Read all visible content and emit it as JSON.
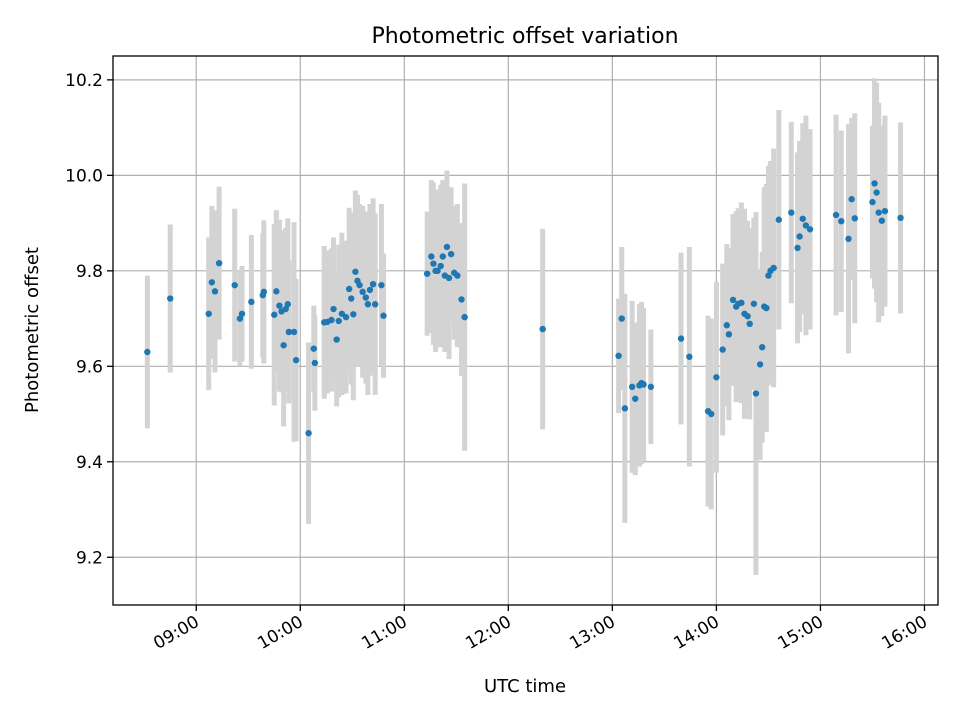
{
  "chart_data": {
    "type": "scatter",
    "title": "Photometric offset variation",
    "xlabel": "UTC time",
    "ylabel": "Photometric offset",
    "x_unit": "hours UTC",
    "xlim": [
      8.2,
      16.13
    ],
    "ylim": [
      9.1,
      10.25
    ],
    "grid": true,
    "x_ticks": [
      {
        "value": 9,
        "label": "09:00"
      },
      {
        "value": 10,
        "label": "10:00"
      },
      {
        "value": 11,
        "label": "11:00"
      },
      {
        "value": 12,
        "label": "12:00"
      },
      {
        "value": 13,
        "label": "13:00"
      },
      {
        "value": 14,
        "label": "14:00"
      },
      {
        "value": 15,
        "label": "15:00"
      },
      {
        "value": 16,
        "label": "16:00"
      }
    ],
    "y_ticks": [
      {
        "value": 9.2,
        "label": "9.2"
      },
      {
        "value": 9.4,
        "label": "9.4"
      },
      {
        "value": 9.6,
        "label": "9.6"
      },
      {
        "value": 9.8,
        "label": "9.8"
      },
      {
        "value": 10.0,
        "label": "10.0"
      },
      {
        "value": 10.2,
        "label": "10.2"
      }
    ],
    "colors": {
      "point": "#1f77b4",
      "errorbar": "#d3d3d3",
      "grid": "#b0b0b0"
    },
    "points": [
      [
        8.53,
        9.63,
        0.16
      ],
      [
        8.75,
        9.742,
        0.155
      ],
      [
        9.12,
        9.71,
        0.16
      ],
      [
        9.15,
        9.776,
        0.16
      ],
      [
        9.18,
        9.757,
        0.17
      ],
      [
        9.22,
        9.816,
        0.16
      ],
      [
        9.37,
        9.77,
        0.16
      ],
      [
        9.42,
        9.7,
        0.1
      ],
      [
        9.44,
        9.71,
        0.1
      ],
      [
        9.53,
        9.735,
        0.14
      ],
      [
        9.64,
        9.749,
        0.13
      ],
      [
        9.65,
        9.756,
        0.15
      ],
      [
        9.75,
        9.708,
        0.19
      ],
      [
        9.77,
        9.757,
        0.17
      ],
      [
        9.8,
        9.727,
        0.18
      ],
      [
        9.82,
        9.715,
        0.17
      ],
      [
        9.84,
        9.644,
        0.17
      ],
      [
        9.86,
        9.72,
        0.17
      ],
      [
        9.88,
        9.73,
        0.18
      ],
      [
        9.89,
        9.672,
        0.15
      ],
      [
        9.94,
        9.672,
        0.23
      ],
      [
        9.96,
        9.613,
        0.17
      ],
      [
        10.08,
        9.46,
        0.19
      ],
      [
        10.13,
        9.637,
        0.09
      ],
      [
        10.14,
        9.607,
        0.1
      ],
      [
        10.23,
        9.692,
        0.16
      ],
      [
        10.26,
        9.693,
        0.15
      ],
      [
        10.3,
        9.697,
        0.15
      ],
      [
        10.32,
        9.72,
        0.15
      ],
      [
        10.35,
        9.656,
        0.14
      ],
      [
        10.37,
        9.695,
        0.16
      ],
      [
        10.4,
        9.71,
        0.17
      ],
      [
        10.44,
        9.703,
        0.16
      ],
      [
        10.47,
        9.762,
        0.17
      ],
      [
        10.49,
        9.742,
        0.18
      ],
      [
        10.51,
        9.709,
        0.18
      ],
      [
        10.53,
        9.798,
        0.17
      ],
      [
        10.55,
        9.779,
        0.18
      ],
      [
        10.57,
        9.77,
        0.17
      ],
      [
        10.6,
        9.756,
        0.18
      ],
      [
        10.63,
        9.744,
        0.18
      ],
      [
        10.65,
        9.73,
        0.19
      ],
      [
        10.67,
        9.76,
        0.18
      ],
      [
        10.7,
        9.772,
        0.18
      ],
      [
        10.72,
        9.73,
        0.19
      ],
      [
        10.78,
        9.77,
        0.17
      ],
      [
        10.8,
        9.706,
        0.13
      ],
      [
        11.22,
        9.794,
        0.13
      ],
      [
        11.26,
        9.83,
        0.16
      ],
      [
        11.28,
        9.815,
        0.17
      ],
      [
        11.3,
        9.8,
        0.17
      ],
      [
        11.32,
        9.8,
        0.16
      ],
      [
        11.35,
        9.81,
        0.17
      ],
      [
        11.37,
        9.83,
        0.16
      ],
      [
        11.39,
        9.79,
        0.16
      ],
      [
        11.41,
        9.85,
        0.16
      ],
      [
        11.43,
        9.785,
        0.17
      ],
      [
        11.45,
        9.835,
        0.14
      ],
      [
        11.48,
        9.796,
        0.14
      ],
      [
        11.51,
        9.79,
        0.15
      ],
      [
        11.55,
        9.74,
        0.16
      ],
      [
        11.58,
        9.703,
        0.28
      ],
      [
        12.33,
        9.678,
        0.21
      ],
      [
        13.06,
        9.622,
        0.12
      ],
      [
        13.09,
        9.7,
        0.15
      ],
      [
        13.12,
        9.512,
        0.24
      ],
      [
        13.19,
        9.557,
        0.18
      ],
      [
        13.22,
        9.532,
        0.16
      ],
      [
        13.26,
        9.56,
        0.17
      ],
      [
        13.28,
        9.565,
        0.17
      ],
      [
        13.3,
        9.562,
        0.16
      ],
      [
        13.37,
        9.557,
        0.12
      ],
      [
        13.66,
        9.658,
        0.18
      ],
      [
        13.74,
        9.62,
        0.23
      ],
      [
        13.92,
        9.506,
        0.2
      ],
      [
        13.95,
        9.5,
        0.2
      ],
      [
        14.0,
        9.577,
        0.2
      ],
      [
        14.06,
        9.635,
        0.18
      ],
      [
        14.1,
        9.686,
        0.17
      ],
      [
        14.12,
        9.667,
        0.18
      ],
      [
        14.16,
        9.739,
        0.18
      ],
      [
        14.19,
        9.725,
        0.2
      ],
      [
        14.21,
        9.731,
        0.2
      ],
      [
        14.24,
        9.733,
        0.21
      ],
      [
        14.27,
        9.71,
        0.22
      ],
      [
        14.3,
        9.705,
        0.2
      ],
      [
        14.32,
        9.689,
        0.2
      ],
      [
        14.36,
        9.731,
        0.18
      ],
      [
        14.38,
        9.543,
        0.38
      ],
      [
        14.42,
        9.604,
        0.2
      ],
      [
        14.44,
        9.64,
        0.2
      ],
      [
        14.46,
        9.725,
        0.25
      ],
      [
        14.48,
        9.722,
        0.26
      ],
      [
        14.5,
        9.79,
        0.23
      ],
      [
        14.52,
        9.8,
        0.23
      ],
      [
        14.55,
        9.806,
        0.25
      ],
      [
        14.6,
        9.907,
        0.23
      ],
      [
        14.72,
        9.922,
        0.19
      ],
      [
        14.78,
        9.848,
        0.2
      ],
      [
        14.8,
        9.872,
        0.2
      ],
      [
        14.83,
        9.909,
        0.2
      ],
      [
        14.86,
        9.895,
        0.23
      ],
      [
        14.9,
        9.887,
        0.21
      ],
      [
        15.15,
        9.917,
        0.21
      ],
      [
        15.2,
        9.904,
        0.19
      ],
      [
        15.27,
        9.867,
        0.24
      ],
      [
        15.3,
        9.95,
        0.17
      ],
      [
        15.33,
        9.91,
        0.22
      ],
      [
        15.5,
        9.944,
        0.16
      ],
      [
        15.52,
        9.983,
        0.22
      ],
      [
        15.54,
        9.964,
        0.23
      ],
      [
        15.56,
        9.922,
        0.23
      ],
      [
        15.59,
        9.905,
        0.2
      ],
      [
        15.62,
        9.925,
        0.2
      ],
      [
        15.77,
        9.911,
        0.2
      ]
    ]
  }
}
